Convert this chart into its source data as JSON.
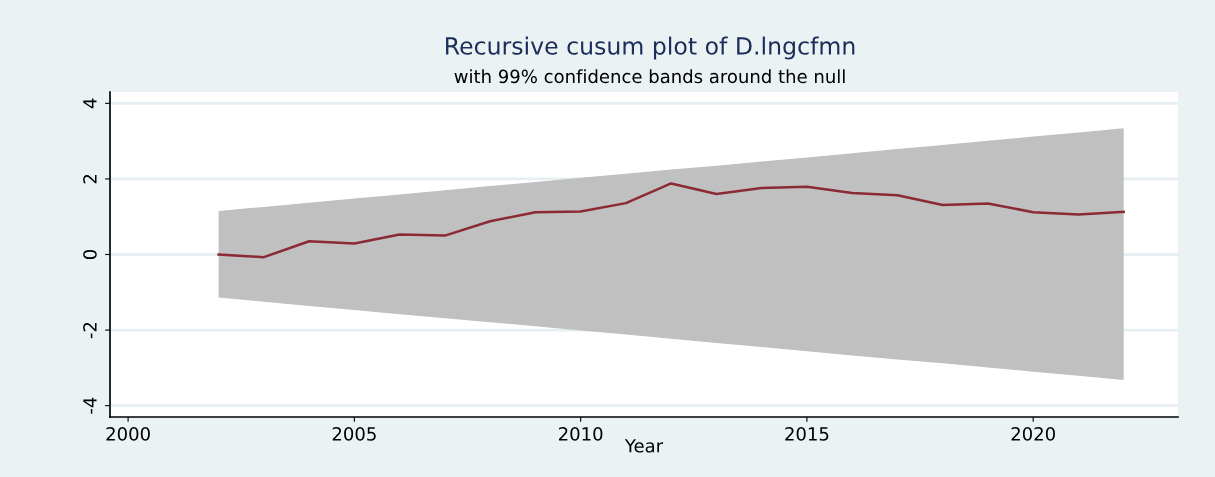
{
  "chart_data": {
    "type": "line",
    "title": "Recursive cusum plot of D.lngcfmn",
    "subtitle": "with 99% confidence bands around the null",
    "xlabel": "Year",
    "series": [
      {
        "color": "#8b2a35",
        "x": [
          2002,
          2003,
          2004,
          2005,
          2006,
          2007,
          2008,
          2009,
          2010,
          2011,
          2012,
          2013,
          2014,
          2015,
          2016,
          2017,
          2018,
          2019,
          2020,
          2021,
          2022
        ],
        "values": [
          0.0,
          -0.07,
          0.35,
          0.29,
          0.53,
          0.5,
          0.88,
          1.12,
          1.14,
          1.36,
          1.88,
          1.6,
          1.76,
          1.79,
          1.63,
          1.57,
          1.31,
          1.35,
          1.12,
          1.06,
          1.13
        ],
        "lower": [
          -1.14,
          -1.25,
          -1.36,
          -1.47,
          -1.58,
          -1.69,
          -1.79,
          -1.9,
          -2.01,
          -2.12,
          -2.23,
          -2.34,
          -2.45,
          -2.56,
          -2.67,
          -2.78,
          -2.88,
          -2.99,
          -3.1,
          -3.21,
          -3.32
        ],
        "upper": [
          1.15,
          1.26,
          1.37,
          1.48,
          1.59,
          1.7,
          1.81,
          1.92,
          2.03,
          2.14,
          2.25,
          2.35,
          2.46,
          2.57,
          2.68,
          2.79,
          2.9,
          3.01,
          3.12,
          3.23,
          3.34
        ]
      }
    ],
    "xlim": [
      1999.6,
      2023.2
    ],
    "xticks": [
      2000,
      2005,
      2010,
      2015,
      2020
    ],
    "ylim": [
      -4.3,
      4.3
    ],
    "yticks": [
      -4,
      -2,
      0,
      2,
      4
    ],
    "grid": "y"
  }
}
